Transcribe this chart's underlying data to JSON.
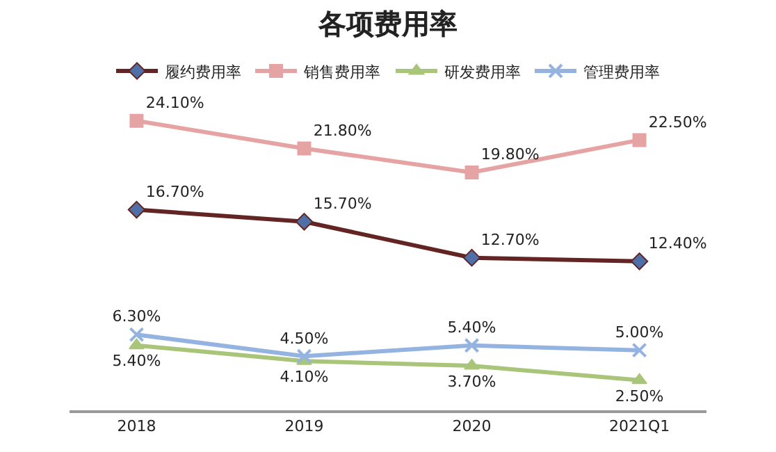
{
  "chart_data": {
    "type": "line",
    "title": "各项费用率",
    "categories": [
      "2018",
      "2019",
      "2020",
      "2021Q1"
    ],
    "series": [
      {
        "name": "履约费用率",
        "color": "#632523",
        "marker": "diamond",
        "values": [
          16.7,
          15.7,
          12.7,
          12.4
        ],
        "value_labels": [
          "16.70%",
          "15.70%",
          "12.70%",
          "12.40%"
        ]
      },
      {
        "name": "销售费用率",
        "color": "#e6a3a3",
        "marker": "square",
        "values": [
          24.1,
          21.8,
          19.8,
          22.5
        ],
        "value_labels": [
          "24.10%",
          "21.80%",
          "19.80%",
          "22.50%"
        ]
      },
      {
        "name": "研发费用率",
        "color": "#a9c57a",
        "marker": "triangle",
        "values": [
          5.4,
          4.1,
          3.7,
          2.5
        ],
        "value_labels": [
          "5.40%",
          "4.10%",
          "3.70%",
          "2.50%"
        ]
      },
      {
        "name": "管理费用率",
        "color": "#95b3e0",
        "marker": "cross",
        "values": [
          6.3,
          4.5,
          5.4,
          5.0
        ],
        "value_labels": [
          "6.30%",
          "4.50%",
          "5.40%",
          "5.00%"
        ]
      }
    ],
    "legend": "top"
  }
}
